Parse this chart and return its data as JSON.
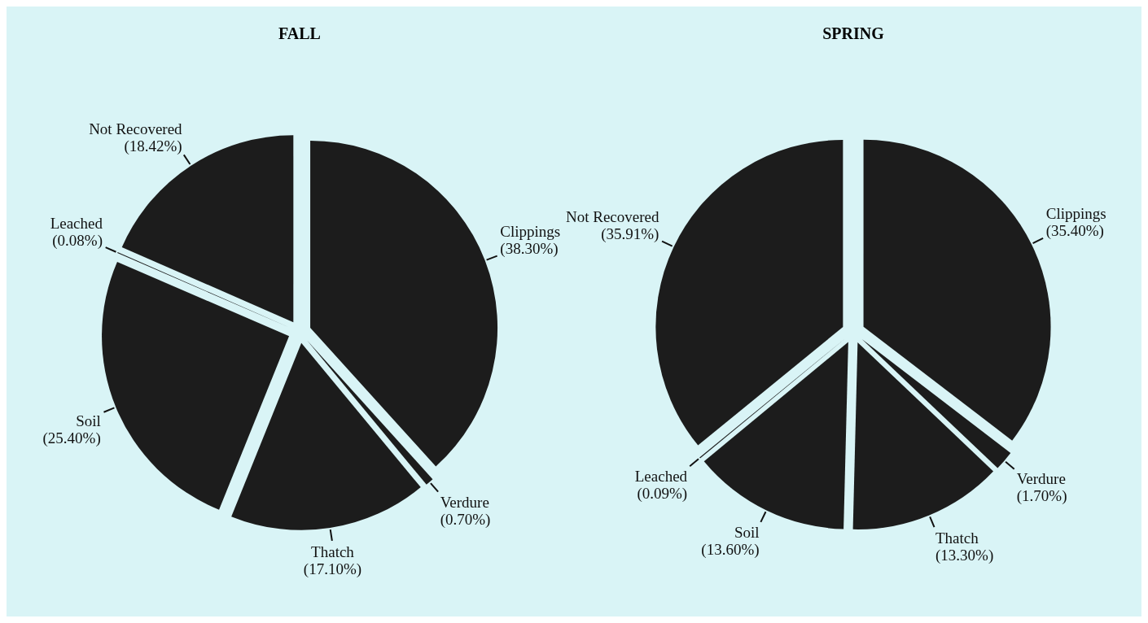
{
  "chart_data": [
    {
      "type": "pie",
      "title": "FALL",
      "categories": [
        "Clippings",
        "Verdure",
        "Thatch",
        "Soil",
        "Leached",
        "Not Recovered"
      ],
      "values": [
        38.3,
        0.7,
        17.1,
        25.4,
        0.08,
        18.42
      ],
      "value_labels": [
        "(38.30%)",
        "(0.70%)",
        "(17.10%)",
        "(25.40%)",
        "(0.08%)",
        "(18.42%)"
      ],
      "colors": [
        "#1c1c1c",
        "#1c1c1c",
        "#1c1c1c",
        "#1c1c1c",
        "#1c1c1c",
        "#1c1c1c"
      ]
    },
    {
      "type": "pie",
      "title": "SPRING",
      "categories": [
        "Clippings",
        "Verdure",
        "Thatch",
        "Soil",
        "Leached",
        "Not Recovered"
      ],
      "values": [
        35.4,
        1.7,
        13.3,
        13.6,
        0.09,
        35.91
      ],
      "value_labels": [
        "(35.40%)",
        "(1.70%)",
        "(13.30%)",
        "(13.60%)",
        "(0.09%)",
        "(35.91%)"
      ],
      "colors": [
        "#1c1c1c",
        "#1c1c1c",
        "#1c1c1c",
        "#1c1c1c",
        "#1c1c1c",
        "#1c1c1c"
      ]
    }
  ]
}
